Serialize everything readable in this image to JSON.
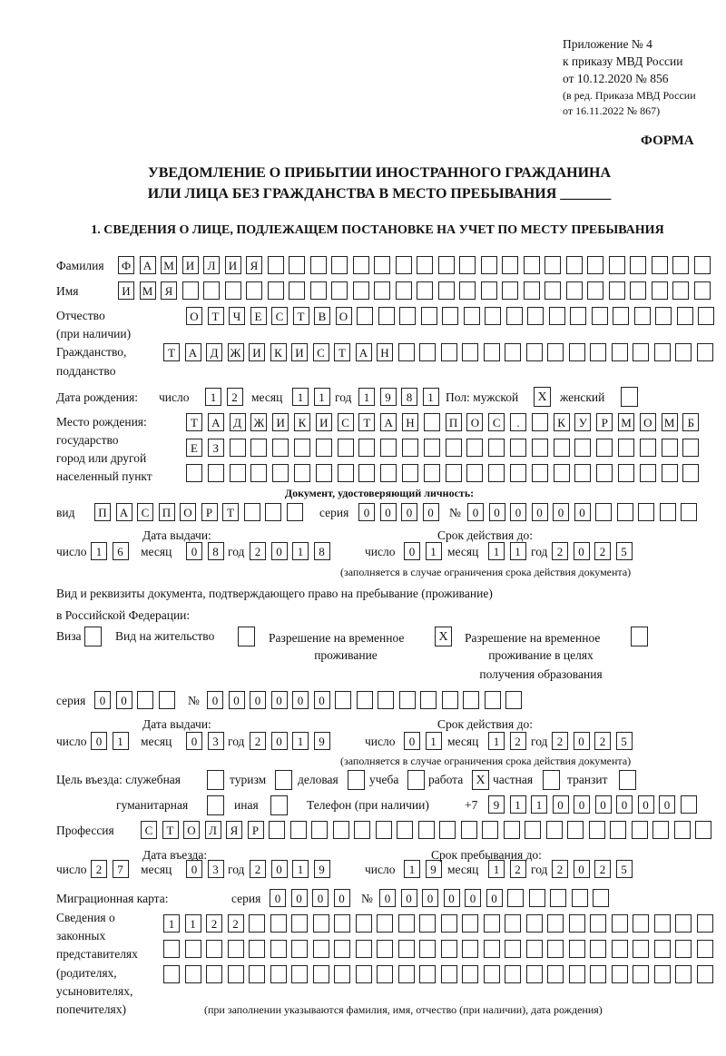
{
  "header": {
    "appendix": "Приложение № 4",
    "order": "к приказу МВД России",
    "order_date": "от 10.12.2020 № 856",
    "edition1": "(в ред. Приказа МВД России",
    "edition2": "от 16.11.2022 № 867)",
    "form_label": "ФОРМА"
  },
  "title": {
    "line1": "УВЕДОМЛЕНИЕ О ПРИБЫТИИ ИНОСТРАННОГО ГРАЖДАНИНА",
    "line2": "ИЛИ ЛИЦА БЕЗ ГРАЖДАНСТВА В МЕСТО ПРЕБЫВАНИЯ _______"
  },
  "section1": {
    "heading": "1. СВЕДЕНИЯ О ЛИЦЕ, ПОДЛЕЖАЩЕМ ПОСТАНОВКЕ НА УЧЕТ ПО МЕСТУ ПРЕБЫВАНИЯ",
    "surname": {
      "label": "Фамилия",
      "cells": [
        "Ф",
        "А",
        "М",
        "И",
        "Л",
        "И",
        "Я",
        "",
        "",
        "",
        "",
        "",
        "",
        "",
        "",
        "",
        "",
        "",
        "",
        "",
        "",
        "",
        "",
        "",
        "",
        "",
        "",
        ""
      ]
    },
    "name": {
      "label": "Имя",
      "cells": [
        "И",
        "М",
        "Я",
        "",
        "",
        "",
        "",
        "",
        "",
        "",
        "",
        "",
        "",
        "",
        "",
        "",
        "",
        "",
        "",
        "",
        "",
        "",
        "",
        "",
        "",
        "",
        "",
        ""
      ]
    },
    "patronymic": {
      "label": "Отчество",
      "label2": "(при наличии)",
      "cells": [
        "О",
        "Т",
        "Ч",
        "Е",
        "С",
        "Т",
        "В",
        "О",
        "",
        "",
        "",
        "",
        "",
        "",
        "",
        "",
        "",
        "",
        "",
        "",
        "",
        "",
        "",
        "",
        ""
      ]
    },
    "citizenship": {
      "label": "Гражданство,",
      "label2": "подданство",
      "cells": [
        "Т",
        "А",
        "Д",
        "Ж",
        "И",
        "К",
        "И",
        "С",
        "Т",
        "А",
        "Н",
        "",
        "",
        "",
        "",
        "",
        "",
        "",
        "",
        "",
        "",
        "",
        "",
        "",
        "",
        ""
      ]
    },
    "birth_date": {
      "label": "Дата рождения:",
      "day_label": "число",
      "day": [
        "1",
        "2"
      ],
      "month_label": "месяц",
      "month": [
        "1",
        "1"
      ],
      "year_label": "год",
      "year": [
        "1",
        "9",
        "8",
        "1"
      ],
      "sex_label": "Пол: мужской",
      "male": "X",
      "female_label": "женский",
      "female": ""
    },
    "birth_place": {
      "label1": "Место рождения:",
      "label2": "государство",
      "label3": "город или другой",
      "label4": "населенный пункт",
      "row1": [
        "Т",
        "А",
        "Д",
        "Ж",
        "И",
        "К",
        "И",
        "С",
        "Т",
        "А",
        "Н",
        "",
        "П",
        "О",
        "С",
        ".",
        "",
        "К",
        "У",
        "Р",
        "М",
        "О",
        "М",
        "Б"
      ],
      "row2": [
        "Е",
        "З",
        "",
        "",
        "",
        "",
        "",
        "",
        "",
        "",
        "",
        "",
        "",
        "",
        "",
        "",
        "",
        "",
        "",
        "",
        "",
        "",
        "",
        ""
      ],
      "row3": [
        "",
        "",
        "",
        "",
        "",
        "",
        "",
        "",
        "",
        "",
        "",
        "",
        "",
        "",
        "",
        "",
        "",
        "",
        "",
        "",
        "",
        "",
        "",
        ""
      ]
    },
    "id_doc": {
      "heading": "Документ, удостоверяющий личность:",
      "kind_label": "вид",
      "kind": [
        "П",
        "А",
        "С",
        "П",
        "О",
        "Р",
        "Т",
        "",
        "",
        ""
      ],
      "series_label": "серия",
      "series": [
        "0",
        "0",
        "0",
        "0"
      ],
      "number_label": "№",
      "number": [
        "0",
        "0",
        "0",
        "0",
        "0",
        "0",
        "",
        "",
        "",
        "",
        ""
      ],
      "issue_label": "Дата выдачи:",
      "valid_label": "Срок действия до:",
      "day_label": "число",
      "month_label": "месяц",
      "year_label": "год",
      "issue_day": [
        "1",
        "6"
      ],
      "issue_month": [
        "0",
        "8"
      ],
      "issue_year": [
        "2",
        "0",
        "1",
        "8"
      ],
      "valid_day": [
        "0",
        "1"
      ],
      "valid_month": [
        "1",
        "1"
      ],
      "valid_year": [
        "2",
        "0",
        "2",
        "5"
      ],
      "note": "(заполняется в случае ограничения срока действия документа)"
    },
    "stay_doc": {
      "heading1": "Вид и реквизиты документа, подтверждающего право на пребывание (проживание)",
      "heading2": "в Российской Федерации:",
      "visa_label": "Виза",
      "visa": "",
      "residence_label": "Вид на жительство",
      "residence": "",
      "temp_label1": "Разрешение на временное",
      "temp_label2": "проживание",
      "temp": "X",
      "edu_label1": "Разрешение на временное",
      "edu_label2": "проживание в целях",
      "edu_label3": "получения образования",
      "edu": "",
      "series_label": "серия",
      "series": [
        "0",
        "0",
        "",
        ""
      ],
      "number_label": "№",
      "number": [
        "0",
        "0",
        "0",
        "0",
        "0",
        "0",
        "",
        "",
        "",
        "",
        "",
        "",
        "",
        "",
        ""
      ],
      "issue_label": "Дата выдачи:",
      "valid_label": "Срок действия до:",
      "day_label": "число",
      "month_label": "месяц",
      "year_label": "год",
      "issue_day": [
        "0",
        "1"
      ],
      "issue_month": [
        "0",
        "3"
      ],
      "issue_year": [
        "2",
        "0",
        "1",
        "9"
      ],
      "valid_day": [
        "0",
        "1"
      ],
      "valid_month": [
        "1",
        "2"
      ],
      "valid_year": [
        "2",
        "0",
        "2",
        "5"
      ],
      "note": "(заполняется в случае ограничения срока действия документа)"
    },
    "purpose": {
      "label": "Цель въезда: служебная",
      "official": "",
      "tourism_label": "туризм",
      "tourism": "",
      "business_label": "деловая",
      "business": "",
      "study_label": "учеба",
      "study": "",
      "work_label": "работа",
      "work": "X",
      "private_label": "частная",
      "private": "",
      "transit_label": "транзит",
      "transit": "",
      "humanitarian_label": "гуманитарная",
      "humanitarian": "",
      "other_label": "иная",
      "other": ""
    },
    "phone": {
      "label": "Телефон (при наличии)",
      "prefix": "+7",
      "cells": [
        "9",
        "1",
        "1",
        "0",
        "0",
        "0",
        "0",
        "0",
        "0",
        ""
      ]
    },
    "profession": {
      "label": "Профессия",
      "cells": [
        "С",
        "Т",
        "О",
        "Л",
        "Я",
        "Р",
        "",
        "",
        "",
        "",
        "",
        "",
        "",
        "",
        "",
        "",
        "",
        "",
        "",
        "",
        "",
        "",
        "",
        "",
        "",
        "",
        ""
      ]
    },
    "entry": {
      "entry_label": "Дата въезда:",
      "stay_label": "Срок пребывания до:",
      "day_label": "число",
      "month_label": "месяц",
      "year_label": "год",
      "entry_day": [
        "2",
        "7"
      ],
      "entry_month": [
        "0",
        "3"
      ],
      "entry_year": [
        "2",
        "0",
        "1",
        "9"
      ],
      "stay_day": [
        "1",
        "9"
      ],
      "stay_month": [
        "1",
        "2"
      ],
      "stay_year": [
        "2",
        "0",
        "2",
        "5"
      ]
    },
    "migration_card": {
      "label": "Миграционная карта:",
      "series_label": "серия",
      "series": [
        "0",
        "0",
        "0",
        "0"
      ],
      "number_label": "№",
      "number": [
        "0",
        "0",
        "0",
        "0",
        "0",
        "0",
        "",
        "",
        "",
        "",
        ""
      ]
    },
    "representatives": {
      "label1": "Сведения о",
      "label2": "законных",
      "label3": "представителях",
      "label4": "(родителях,",
      "label5": "усыновителях,",
      "label6": "попечителях)",
      "row1": [
        "1",
        "1",
        "2",
        "2",
        "",
        "",
        "",
        "",
        "",
        "",
        "",
        "",
        "",
        "",
        "",
        "",
        "",
        "",
        "",
        "",
        "",
        "",
        "",
        "",
        "",
        ""
      ],
      "row2": [
        "",
        "",
        "",
        "",
        "",
        "",
        "",
        "",
        "",
        "",
        "",
        "",
        "",
        "",
        "",
        "",
        "",
        "",
        "",
        "",
        "",
        "",
        "",
        "",
        "",
        ""
      ],
      "row3": [
        "",
        "",
        "",
        "",
        "",
        "",
        "",
        "",
        "",
        "",
        "",
        "",
        "",
        "",
        "",
        "",
        "",
        "",
        "",
        "",
        "",
        "",
        "",
        "",
        "",
        ""
      ],
      "note": "(при заполнении указываются фамилия, имя, отчество (при наличии), дата рождения)"
    }
  }
}
